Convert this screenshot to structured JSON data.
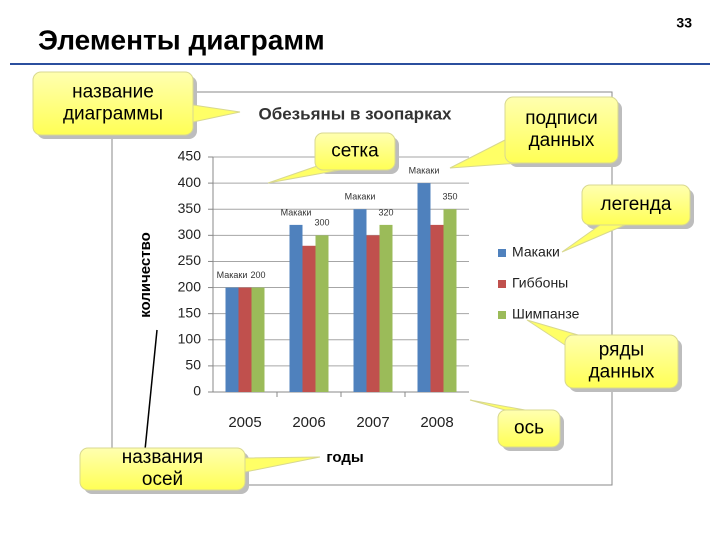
{
  "slide": {
    "title": "Элементы диаграмм",
    "page_number": "33"
  },
  "callouts": [
    {
      "lines": [
        "название",
        "диаграммы"
      ]
    },
    {
      "lines": [
        "сетка"
      ]
    },
    {
      "lines": [
        "подписи",
        "данных"
      ]
    },
    {
      "lines": [
        "легенда"
      ]
    },
    {
      "lines": [
        "ряды",
        "данных"
      ]
    },
    {
      "lines": [
        "ось"
      ]
    },
    {
      "lines": [
        "названия",
        "осей"
      ]
    }
  ],
  "chart_data": {
    "type": "bar",
    "title": "Обезьяны в зоопарках",
    "x_label": "годы",
    "y_label": "количество",
    "categories": [
      "2005",
      "2006",
      "2007",
      "2008"
    ],
    "series": [
      {
        "name": "Макаки",
        "color": "#4f81bd",
        "values": [
          200,
          320,
          350,
          400
        ],
        "data_label": "name"
      },
      {
        "name": "Гиббоны",
        "color": "#c0504d",
        "values": [
          200,
          280,
          300,
          320
        ]
      },
      {
        "name": "Шимпанзе",
        "color": "#9bbb59",
        "values": [
          200,
          300,
          320,
          350
        ],
        "data_label": "value"
      }
    ],
    "ylim": [
      0,
      450
    ],
    "yticks": [
      0,
      50,
      100,
      150,
      200,
      250,
      300,
      350,
      400,
      450
    ],
    "grid": true,
    "legend": "right"
  }
}
